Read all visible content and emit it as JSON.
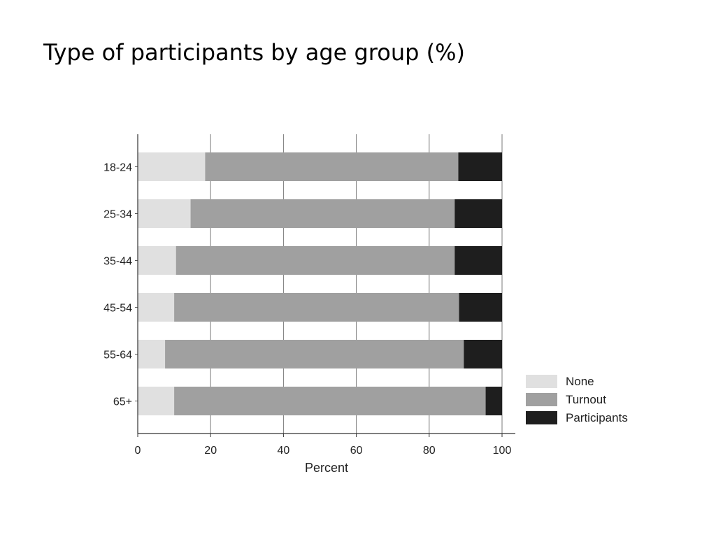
{
  "slide": {
    "title": "Type of participants by age group (%)"
  },
  "chart_data": {
    "type": "bar",
    "orientation": "horizontal",
    "stacked": true,
    "categories": [
      "18-24",
      "25-34",
      "35-44",
      "45-54",
      "55-64",
      "65+"
    ],
    "series": [
      {
        "name": "None",
        "values": [
          18.5,
          14.5,
          10.5,
          10,
          7.5,
          10
        ],
        "color": "#e0e0e0"
      },
      {
        "name": "Turnout",
        "values": [
          69.5,
          72.5,
          76.5,
          78.2,
          82,
          85.5
        ],
        "color": "#a0a0a0"
      },
      {
        "name": "Participants",
        "values": [
          12,
          13,
          13,
          11.8,
          10.5,
          4.5
        ],
        "color": "#1e1e1e"
      }
    ],
    "xlabel": "Percent",
    "ylabel": "",
    "xlim": [
      0,
      100
    ],
    "xticks": [
      "0",
      "20",
      "40",
      "60",
      "80",
      "100"
    ],
    "grid": "vertical",
    "legend_position": "right"
  }
}
